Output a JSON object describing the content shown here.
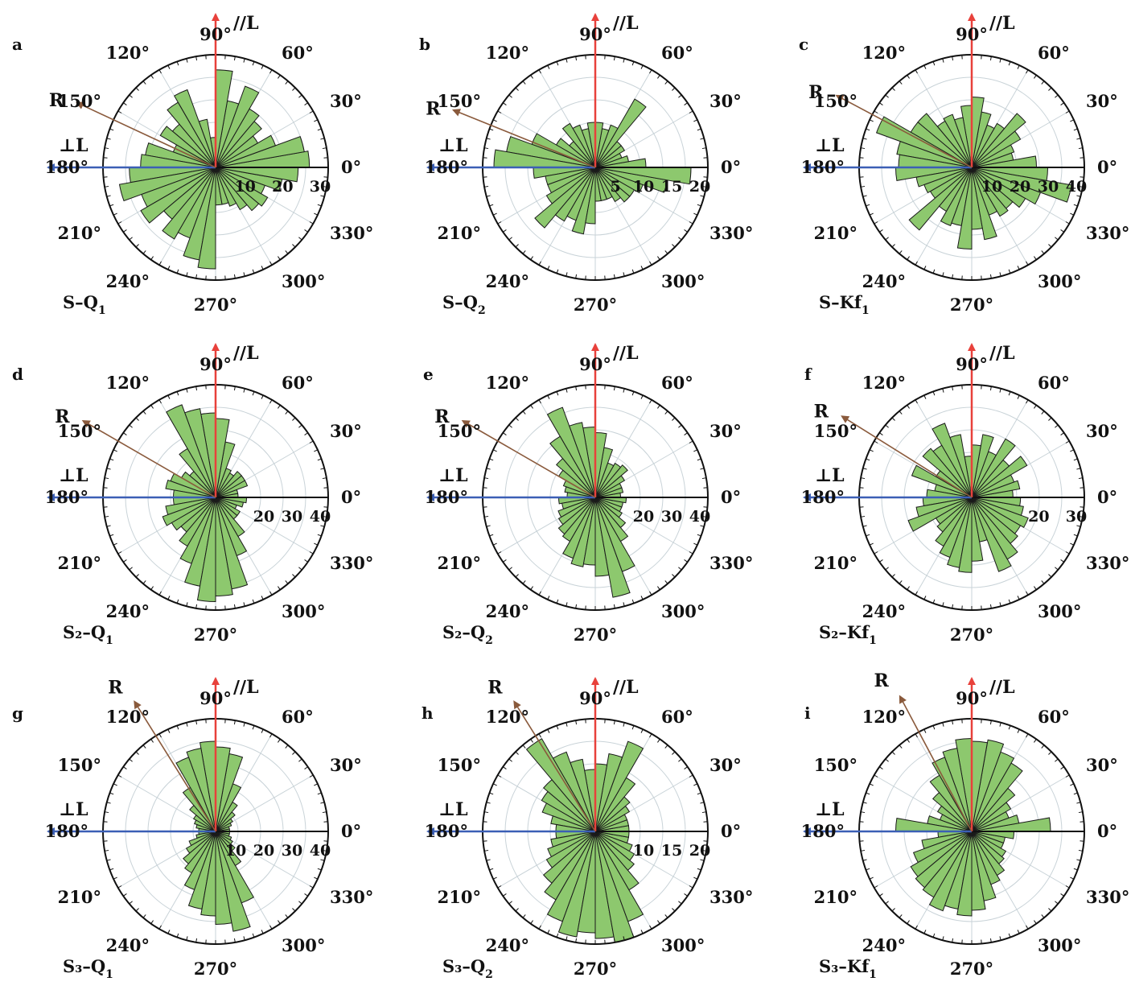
{
  "figure": {
    "direction_labels": {
      "parallel": "∕∕L",
      "perpendicular": "⊥L",
      "resultant": "R"
    },
    "colors": {
      "petal_fill": "#8dc86e",
      "petal_stroke": "#1a1a1a",
      "grid": "#c9d3d8",
      "parallel_arrow": "#e8413b",
      "perpendicular_arrow": "#3b5fb5",
      "resultant_arrow": "#8a5a3c",
      "zero_line": "#111111"
    }
  },
  "chart_data": [
    {
      "panel": "a",
      "type": "rose",
      "sample": "S–Q",
      "sample_sub": "1",
      "angle_labels": [
        "0°",
        "30°",
        "60°",
        "90°",
        "120°",
        "150°",
        "180°",
        "210°",
        "240°",
        "270°",
        "300°",
        "330°"
      ],
      "radial_max": 30,
      "radial_ticks": [
        "10",
        "20",
        "30"
      ],
      "bin_width_deg": 10,
      "resultant_deg": 155,
      "bin_centers_deg": [
        5,
        15,
        25,
        35,
        45,
        55,
        65,
        75,
        85,
        95,
        105,
        115,
        125,
        135,
        145,
        155,
        165,
        175,
        185,
        195,
        205,
        215,
        225,
        235,
        245,
        255,
        265,
        275,
        285,
        295,
        305,
        315,
        325,
        335,
        345,
        355
      ],
      "values": [
        25,
        24,
        17,
        13,
        16,
        18,
        23,
        18,
        26,
        8,
        13,
        22,
        20,
        15,
        17,
        12,
        19,
        20,
        23,
        26,
        21,
        23,
        18,
        22,
        20,
        25,
        27,
        10,
        10,
        11,
        13,
        15,
        16,
        14,
        18,
        22
      ]
    },
    {
      "panel": "b",
      "type": "rose",
      "sample": "S–Q",
      "sample_sub": "2",
      "angle_labels": [
        "0°",
        "30°",
        "60°",
        "90°",
        "120°",
        "150°",
        "180°",
        "210°",
        "240°",
        "270°",
        "300°",
        "330°"
      ],
      "radial_max": 20,
      "radial_ticks": [
        "5",
        "10",
        "15",
        "20"
      ],
      "bin_width_deg": 10,
      "resultant_deg": 158,
      "bin_centers_deg": [
        5,
        15,
        25,
        35,
        45,
        55,
        65,
        75,
        85,
        95,
        105,
        115,
        125,
        135,
        145,
        155,
        165,
        175,
        185,
        195,
        205,
        215,
        225,
        235,
        245,
        255,
        265,
        275,
        285,
        295,
        305,
        315,
        325,
        335,
        345,
        355
      ],
      "values": [
        9,
        6,
        5,
        6,
        6,
        14,
        8,
        7,
        8,
        8,
        7,
        8,
        9,
        6,
        8,
        12,
        16,
        18,
        11,
        9,
        9,
        10,
        14,
        11,
        10,
        12,
        10,
        6,
        6,
        6,
        7,
        8,
        8,
        9,
        13,
        17
      ]
    },
    {
      "panel": "c",
      "type": "rose",
      "sample": "S–Kf",
      "sample_sub": "1",
      "angle_labels": [
        "0°",
        "30°",
        "60°",
        "90°",
        "120°",
        "150°",
        "180°",
        "210°",
        "240°",
        "270°",
        "300°",
        "330°"
      ],
      "radial_max": 40,
      "radial_ticks": [
        "10",
        "20",
        "30",
        "40"
      ],
      "bin_width_deg": 10,
      "resultant_deg": 152,
      "bin_centers_deg": [
        5,
        15,
        25,
        35,
        45,
        55,
        65,
        75,
        85,
        95,
        105,
        115,
        125,
        135,
        145,
        155,
        165,
        175,
        185,
        195,
        205,
        215,
        225,
        235,
        245,
        255,
        265,
        275,
        285,
        295,
        305,
        315,
        325,
        335,
        345,
        355
      ],
      "values": [
        23,
        15,
        16,
        20,
        25,
        18,
        16,
        20,
        25,
        22,
        18,
        20,
        19,
        25,
        25,
        36,
        27,
        26,
        27,
        20,
        18,
        17,
        29,
        18,
        22,
        21,
        29,
        22,
        26,
        18,
        20,
        19,
        22,
        26,
        36,
        27
      ]
    },
    {
      "panel": "d",
      "type": "rose",
      "sample": "S₂–Q",
      "sample_sub": "1",
      "angle_labels": [
        "0°",
        "30°",
        "60°",
        "90°",
        "120°",
        "150°",
        "180°",
        "210°",
        "240°",
        "270°",
        "300°",
        "330°"
      ],
      "radial_max": 40,
      "radial_ticks": [
        "20",
        "30",
        "40"
      ],
      "bin_width_deg": 10,
      "resultant_deg": 150,
      "bin_centers_deg": [
        5,
        15,
        25,
        35,
        45,
        55,
        65,
        75,
        85,
        95,
        105,
        115,
        125,
        135,
        145,
        155,
        165,
        175,
        185,
        195,
        205,
        215,
        225,
        235,
        245,
        255,
        265,
        275,
        285,
        295,
        305,
        315,
        325,
        335,
        345,
        355
      ],
      "values": [
        8,
        8,
        12,
        12,
        12,
        10,
        11,
        20,
        28,
        30,
        32,
        35,
        20,
        12,
        14,
        17,
        18,
        15,
        15,
        18,
        20,
        18,
        16,
        20,
        25,
        32,
        37,
        35,
        33,
        22,
        16,
        10,
        10,
        8,
        10,
        11
      ]
    },
    {
      "panel": "e",
      "type": "rose",
      "sample": "S₂–Q",
      "sample_sub": "2",
      "angle_labels": [
        "0°",
        "30°",
        "60°",
        "90°",
        "120°",
        "150°",
        "180°",
        "210°",
        "240°",
        "270°",
        "300°",
        "330°"
      ],
      "radial_max": 40,
      "radial_ticks": [
        "20",
        "30",
        "40"
      ],
      "bin_width_deg": 10,
      "resultant_deg": 150,
      "bin_centers_deg": [
        5,
        15,
        25,
        35,
        45,
        55,
        65,
        75,
        85,
        95,
        105,
        115,
        125,
        135,
        145,
        155,
        165,
        175,
        185,
        195,
        205,
        215,
        225,
        235,
        245,
        255,
        265,
        275,
        285,
        295,
        305,
        315,
        325,
        335,
        345,
        355
      ],
      "values": [
        9,
        10,
        10,
        12,
        15,
        14,
        13,
        18,
        23,
        25,
        27,
        34,
        25,
        18,
        15,
        12,
        11,
        10,
        13,
        12,
        14,
        15,
        17,
        18,
        23,
        25,
        24,
        28,
        36,
        28,
        18,
        14,
        11,
        10,
        10,
        11
      ]
    },
    {
      "panel": "f",
      "type": "rose",
      "sample": "S₂–Kf",
      "sample_sub": "1",
      "angle_labels": [
        "0°",
        "30°",
        "60°",
        "90°",
        "120°",
        "150°",
        "180°",
        "210°",
        "240°",
        "270°",
        "300°",
        "330°"
      ],
      "radial_max": 30,
      "radial_ticks": [
        "20",
        "30"
      ],
      "bin_width_deg": 10,
      "resultant_deg": 148,
      "bin_centers_deg": [
        5,
        15,
        25,
        35,
        45,
        55,
        65,
        75,
        85,
        95,
        105,
        115,
        125,
        135,
        145,
        155,
        165,
        175,
        185,
        195,
        205,
        215,
        225,
        235,
        245,
        255,
        265,
        275,
        285,
        295,
        305,
        315,
        325,
        335,
        345,
        355
      ],
      "values": [
        11,
        13,
        12,
        17,
        13,
        18,
        13,
        17,
        14,
        11,
        17,
        21,
        16,
        17,
        11,
        17,
        10,
        12,
        13,
        15,
        18,
        11,
        12,
        15,
        17,
        19,
        20,
        17,
        12,
        21,
        19,
        16,
        15,
        16,
        14,
        13
      ]
    },
    {
      "panel": "g",
      "type": "rose",
      "sample": "S₃–Q",
      "sample_sub": "1",
      "angle_labels": [
        "0°",
        "30°",
        "60°",
        "90°",
        "120°",
        "150°",
        "180°",
        "210°",
        "240°",
        "270°",
        "300°",
        "330°"
      ],
      "radial_max": 40,
      "radial_ticks": [
        "10",
        "20",
        "30",
        "40"
      ],
      "bin_width_deg": 10,
      "resultant_deg": 122,
      "bin_centers_deg": [
        5,
        15,
        25,
        35,
        45,
        55,
        65,
        75,
        85,
        95,
        105,
        115,
        125,
        135,
        145,
        155,
        165,
        175,
        185,
        195,
        205,
        215,
        225,
        235,
        245,
        255,
        265,
        275,
        285,
        295,
        305,
        315,
        325,
        335,
        345,
        355
      ],
      "values": [
        5,
        5,
        6,
        7,
        9,
        12,
        18,
        28,
        30,
        32,
        30,
        28,
        18,
        12,
        9,
        8,
        7,
        6,
        6,
        7,
        10,
        12,
        15,
        17,
        22,
        28,
        30,
        33,
        36,
        27,
        14,
        9,
        7,
        6,
        5,
        5
      ]
    },
    {
      "panel": "h",
      "type": "rose",
      "sample": "S₃–Q",
      "sample_sub": "2",
      "angle_labels": [
        "0°",
        "30°",
        "60°",
        "90°",
        "120°",
        "150°",
        "180°",
        "210°",
        "240°",
        "270°",
        "300°",
        "330°"
      ],
      "radial_max": 20,
      "radial_ticks": [
        "10",
        "15",
        "20"
      ],
      "bin_width_deg": 10,
      "resultant_deg": 122,
      "bin_centers_deg": [
        5,
        15,
        25,
        35,
        45,
        55,
        65,
        75,
        85,
        95,
        105,
        115,
        125,
        135,
        145,
        155,
        165,
        175,
        185,
        195,
        205,
        215,
        225,
        235,
        245,
        255,
        265,
        275,
        285,
        295,
        305,
        315,
        325,
        335,
        345,
        355
      ],
      "values": [
        6,
        6,
        6,
        7,
        8,
        11,
        17,
        14,
        12,
        11,
        13,
        15,
        19,
        12,
        11,
        10,
        8,
        7,
        7,
        8,
        9,
        10,
        12,
        14,
        17,
        19,
        18,
        19,
        20,
        17,
        12,
        9,
        8,
        7,
        6,
        6
      ]
    },
    {
      "panel": "i",
      "type": "rose",
      "sample": "S₃–Kf",
      "sample_sub": "1",
      "angle_labels": [
        "0°",
        "30°",
        "60°",
        "90°",
        "120°",
        "150°",
        "180°",
        "210°",
        "240°",
        "270°",
        "300°",
        "330°"
      ],
      "radial_max": 40,
      "radial_ticks": [],
      "bin_width_deg": 10,
      "resultant_deg": 118,
      "bin_centers_deg": [
        5,
        15,
        25,
        35,
        45,
        55,
        65,
        75,
        85,
        95,
        105,
        115,
        125,
        135,
        145,
        155,
        165,
        175,
        185,
        195,
        205,
        215,
        225,
        235,
        245,
        255,
        265,
        275,
        285,
        295,
        305,
        315,
        325,
        335,
        345,
        355
      ],
      "values": [
        28,
        17,
        14,
        16,
        20,
        28,
        30,
        33,
        32,
        33,
        30,
        28,
        23,
        18,
        14,
        12,
        16,
        27,
        12,
        18,
        22,
        25,
        26,
        27,
        30,
        28,
        30,
        28,
        25,
        20,
        18,
        15,
        14,
        12,
        12,
        15
      ]
    }
  ]
}
